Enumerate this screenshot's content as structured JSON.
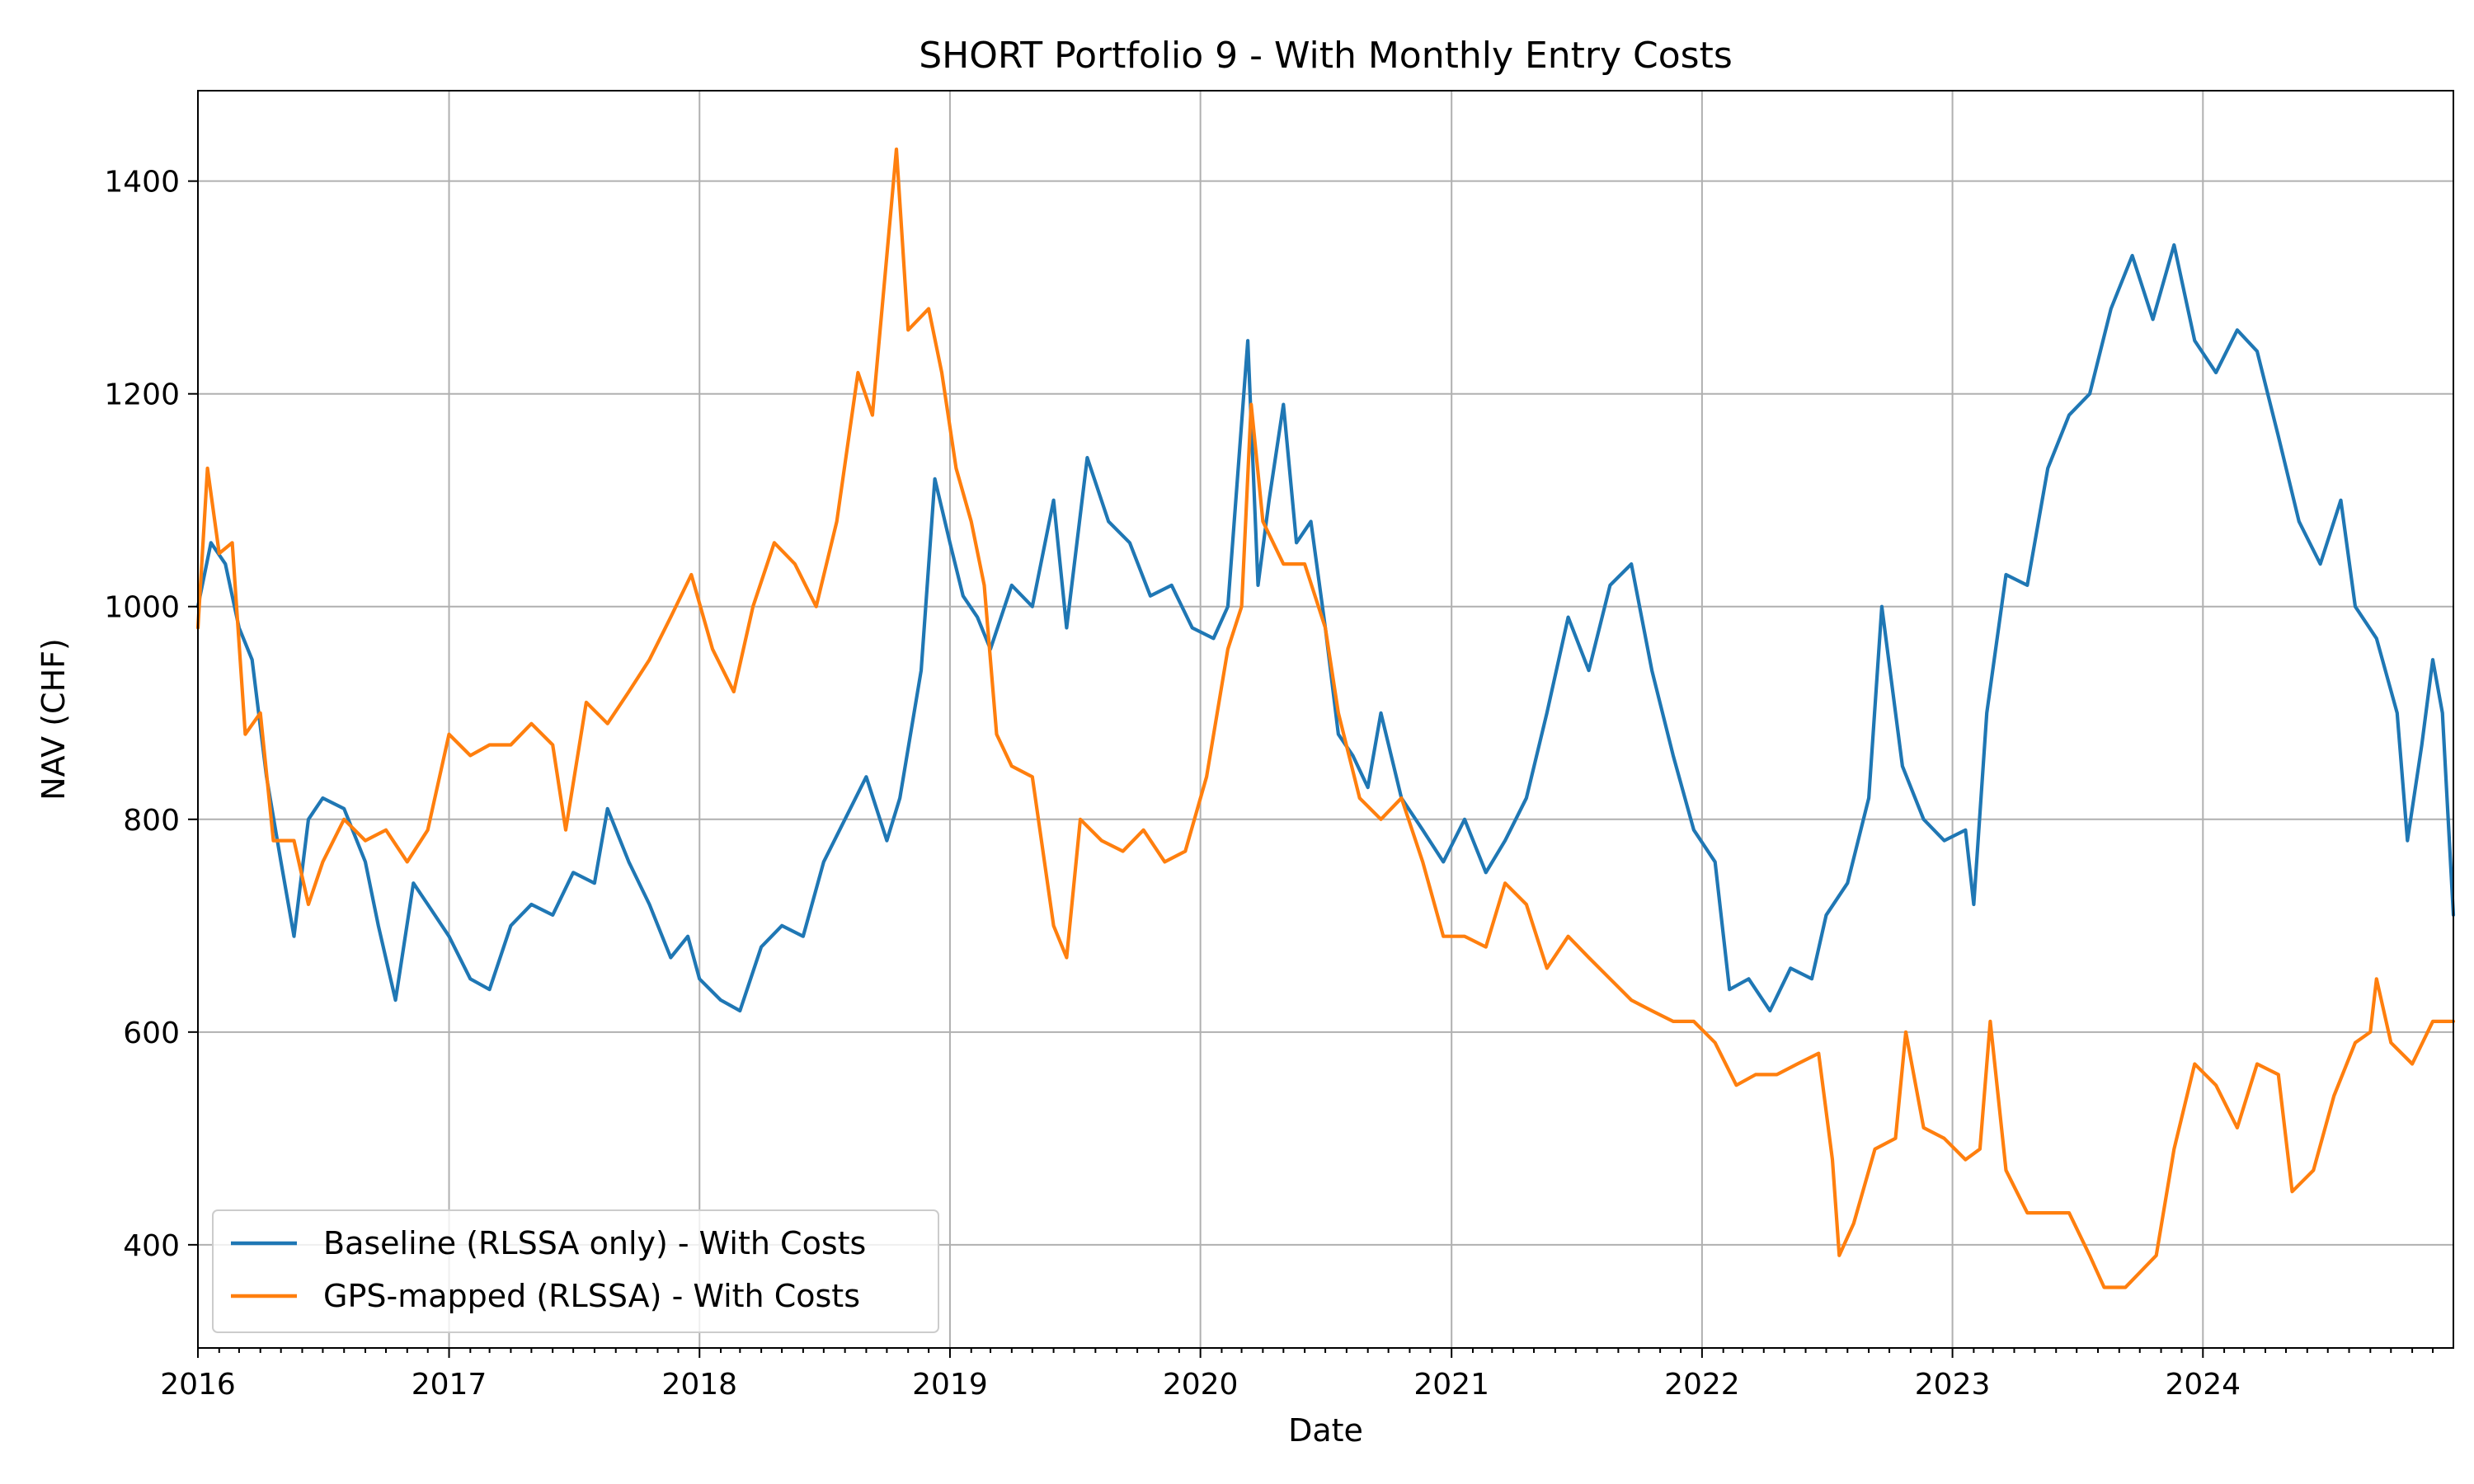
{
  "chart_data": {
    "type": "line",
    "title": "SHORT Portfolio 9 - With Monthly Entry Costs",
    "xlabel": "Date",
    "ylabel": "NAV (CHF)",
    "xlim": [
      "2016-01-01",
      "2024-12-31"
    ],
    "ylim": [
      303,
      1485
    ],
    "x_ticks": [
      "2016",
      "2017",
      "2018",
      "2019",
      "2020",
      "2021",
      "2022",
      "2023",
      "2024"
    ],
    "y_ticks": [
      400,
      600,
      800,
      1000,
      1200,
      1400
    ],
    "grid": true,
    "legend_position": "lower-left",
    "series": [
      {
        "name": "Baseline (RLSSA only) - With Costs",
        "color": "#1f77b4",
        "points": [
          [
            "2016-01-01",
            1000
          ],
          [
            "2016-01-20",
            1060
          ],
          [
            "2016-02-10",
            1040
          ],
          [
            "2016-03-01",
            980
          ],
          [
            "2016-03-20",
            950
          ],
          [
            "2016-04-10",
            840
          ],
          [
            "2016-05-01",
            760
          ],
          [
            "2016-05-20",
            690
          ],
          [
            "2016-06-10",
            800
          ],
          [
            "2016-07-01",
            820
          ],
          [
            "2016-08-01",
            810
          ],
          [
            "2016-09-01",
            760
          ],
          [
            "2016-09-20",
            700
          ],
          [
            "2016-10-15",
            630
          ],
          [
            "2016-11-10",
            740
          ],
          [
            "2016-12-01",
            720
          ],
          [
            "2017-01-01",
            690
          ],
          [
            "2017-02-01",
            650
          ],
          [
            "2017-03-01",
            640
          ],
          [
            "2017-04-01",
            700
          ],
          [
            "2017-05-01",
            720
          ],
          [
            "2017-06-01",
            710
          ],
          [
            "2017-07-01",
            750
          ],
          [
            "2017-08-01",
            740
          ],
          [
            "2017-08-20",
            810
          ],
          [
            "2017-09-20",
            760
          ],
          [
            "2017-10-20",
            720
          ],
          [
            "2017-11-20",
            670
          ],
          [
            "2017-12-15",
            690
          ],
          [
            "2018-01-01",
            650
          ],
          [
            "2018-02-01",
            630
          ],
          [
            "2018-03-01",
            620
          ],
          [
            "2018-04-01",
            680
          ],
          [
            "2018-05-01",
            700
          ],
          [
            "2018-06-01",
            690
          ],
          [
            "2018-07-01",
            760
          ],
          [
            "2018-08-01",
            800
          ],
          [
            "2018-09-01",
            840
          ],
          [
            "2018-10-01",
            780
          ],
          [
            "2018-10-20",
            820
          ],
          [
            "2018-11-20",
            940
          ],
          [
            "2018-12-10",
            1120
          ],
          [
            "2019-01-01",
            1060
          ],
          [
            "2019-01-20",
            1010
          ],
          [
            "2019-02-10",
            990
          ],
          [
            "2019-03-01",
            960
          ],
          [
            "2019-04-01",
            1020
          ],
          [
            "2019-05-01",
            1000
          ],
          [
            "2019-06-01",
            1100
          ],
          [
            "2019-06-20",
            980
          ],
          [
            "2019-07-20",
            1140
          ],
          [
            "2019-08-20",
            1080
          ],
          [
            "2019-09-20",
            1060
          ],
          [
            "2019-10-20",
            1010
          ],
          [
            "2019-11-20",
            1020
          ],
          [
            "2019-12-20",
            980
          ],
          [
            "2020-01-20",
            970
          ],
          [
            "2020-02-10",
            1000
          ],
          [
            "2020-03-10",
            1250
          ],
          [
            "2020-03-25",
            1020
          ],
          [
            "2020-04-10",
            1100
          ],
          [
            "2020-05-01",
            1190
          ],
          [
            "2020-05-20",
            1060
          ],
          [
            "2020-06-10",
            1080
          ],
          [
            "2020-07-01",
            980
          ],
          [
            "2020-07-20",
            880
          ],
          [
            "2020-08-10",
            860
          ],
          [
            "2020-09-01",
            830
          ],
          [
            "2020-09-20",
            900
          ],
          [
            "2020-10-20",
            820
          ],
          [
            "2020-11-20",
            790
          ],
          [
            "2020-12-20",
            760
          ],
          [
            "2021-01-20",
            800
          ],
          [
            "2021-02-20",
            750
          ],
          [
            "2021-03-20",
            780
          ],
          [
            "2021-04-20",
            820
          ],
          [
            "2021-05-20",
            900
          ],
          [
            "2021-06-20",
            990
          ],
          [
            "2021-07-20",
            940
          ],
          [
            "2021-08-20",
            1020
          ],
          [
            "2021-09-20",
            1040
          ],
          [
            "2021-10-20",
            940
          ],
          [
            "2021-11-20",
            860
          ],
          [
            "2021-12-20",
            790
          ],
          [
            "2022-01-20",
            760
          ],
          [
            "2022-02-10",
            640
          ],
          [
            "2022-03-10",
            650
          ],
          [
            "2022-04-10",
            620
          ],
          [
            "2022-05-10",
            660
          ],
          [
            "2022-06-10",
            650
          ],
          [
            "2022-07-01",
            710
          ],
          [
            "2022-08-01",
            740
          ],
          [
            "2022-09-01",
            820
          ],
          [
            "2022-09-20",
            1000
          ],
          [
            "2022-10-20",
            850
          ],
          [
            "2022-11-20",
            800
          ],
          [
            "2022-12-20",
            780
          ],
          [
            "2023-01-20",
            790
          ],
          [
            "2023-02-01",
            720
          ],
          [
            "2023-02-20",
            900
          ],
          [
            "2023-03-20",
            1030
          ],
          [
            "2023-04-20",
            1020
          ],
          [
            "2023-05-20",
            1130
          ],
          [
            "2023-06-20",
            1180
          ],
          [
            "2023-07-20",
            1200
          ],
          [
            "2023-08-20",
            1280
          ],
          [
            "2023-09-20",
            1330
          ],
          [
            "2023-10-20",
            1270
          ],
          [
            "2023-11-20",
            1340
          ],
          [
            "2023-12-20",
            1250
          ],
          [
            "2024-01-20",
            1220
          ],
          [
            "2024-02-20",
            1260
          ],
          [
            "2024-03-20",
            1240
          ],
          [
            "2024-04-20",
            1160
          ],
          [
            "2024-05-20",
            1080
          ],
          [
            "2024-06-20",
            1040
          ],
          [
            "2024-07-20",
            1100
          ],
          [
            "2024-08-10",
            1000
          ],
          [
            "2024-09-10",
            970
          ],
          [
            "2024-10-10",
            900
          ],
          [
            "2024-10-25",
            780
          ],
          [
            "2024-11-15",
            870
          ],
          [
            "2024-12-01",
            950
          ],
          [
            "2024-12-15",
            900
          ],
          [
            "2024-12-31",
            710
          ]
        ]
      },
      {
        "name": "GPS-mapped (RLSSA) - With Costs",
        "color": "#ff7f0e",
        "points": [
          [
            "2016-01-01",
            980
          ],
          [
            "2016-01-15",
            1130
          ],
          [
            "2016-02-01",
            1050
          ],
          [
            "2016-02-20",
            1060
          ],
          [
            "2016-03-10",
            880
          ],
          [
            "2016-04-01",
            900
          ],
          [
            "2016-04-20",
            780
          ],
          [
            "2016-05-20",
            780
          ],
          [
            "2016-06-10",
            720
          ],
          [
            "2016-07-01",
            760
          ],
          [
            "2016-08-01",
            800
          ],
          [
            "2016-09-01",
            780
          ],
          [
            "2016-10-01",
            790
          ],
          [
            "2016-11-01",
            760
          ],
          [
            "2016-12-01",
            790
          ],
          [
            "2017-01-01",
            880
          ],
          [
            "2017-02-01",
            860
          ],
          [
            "2017-03-01",
            870
          ],
          [
            "2017-04-01",
            870
          ],
          [
            "2017-05-01",
            890
          ],
          [
            "2017-06-01",
            870
          ],
          [
            "2017-06-20",
            790
          ],
          [
            "2017-07-20",
            910
          ],
          [
            "2017-08-20",
            890
          ],
          [
            "2017-09-20",
            920
          ],
          [
            "2017-10-20",
            950
          ],
          [
            "2017-11-20",
            990
          ],
          [
            "2017-12-20",
            1030
          ],
          [
            "2018-01-20",
            960
          ],
          [
            "2018-02-20",
            920
          ],
          [
            "2018-03-20",
            1000
          ],
          [
            "2018-04-20",
            1060
          ],
          [
            "2018-05-20",
            1040
          ],
          [
            "2018-06-20",
            1000
          ],
          [
            "2018-07-20",
            1080
          ],
          [
            "2018-08-20",
            1220
          ],
          [
            "2018-09-10",
            1180
          ],
          [
            "2018-10-01",
            1330
          ],
          [
            "2018-10-15",
            1430
          ],
          [
            "2018-11-01",
            1260
          ],
          [
            "2018-12-01",
            1280
          ],
          [
            "2018-12-20",
            1220
          ],
          [
            "2019-01-10",
            1130
          ],
          [
            "2019-02-01",
            1080
          ],
          [
            "2019-02-20",
            1020
          ],
          [
            "2019-03-10",
            880
          ],
          [
            "2019-04-01",
            850
          ],
          [
            "2019-05-01",
            840
          ],
          [
            "2019-06-01",
            700
          ],
          [
            "2019-06-20",
            670
          ],
          [
            "2019-07-10",
            800
          ],
          [
            "2019-08-10",
            780
          ],
          [
            "2019-09-10",
            770
          ],
          [
            "2019-10-10",
            790
          ],
          [
            "2019-11-10",
            760
          ],
          [
            "2019-12-10",
            770
          ],
          [
            "2020-01-10",
            840
          ],
          [
            "2020-02-10",
            960
          ],
          [
            "2020-03-01",
            1000
          ],
          [
            "2020-03-15",
            1190
          ],
          [
            "2020-04-01",
            1080
          ],
          [
            "2020-05-01",
            1040
          ],
          [
            "2020-06-01",
            1040
          ],
          [
            "2020-07-01",
            980
          ],
          [
            "2020-07-20",
            900
          ],
          [
            "2020-08-20",
            820
          ],
          [
            "2020-09-20",
            800
          ],
          [
            "2020-10-20",
            820
          ],
          [
            "2020-11-20",
            760
          ],
          [
            "2020-12-20",
            690
          ],
          [
            "2021-01-20",
            690
          ],
          [
            "2021-02-20",
            680
          ],
          [
            "2021-03-20",
            740
          ],
          [
            "2021-04-20",
            720
          ],
          [
            "2021-05-20",
            660
          ],
          [
            "2021-06-20",
            690
          ],
          [
            "2021-07-20",
            670
          ],
          [
            "2021-08-20",
            650
          ],
          [
            "2021-09-20",
            630
          ],
          [
            "2021-10-20",
            620
          ],
          [
            "2021-11-20",
            610
          ],
          [
            "2021-12-20",
            610
          ],
          [
            "2022-01-20",
            590
          ],
          [
            "2022-02-20",
            550
          ],
          [
            "2022-03-20",
            560
          ],
          [
            "2022-04-20",
            560
          ],
          [
            "2022-05-20",
            570
          ],
          [
            "2022-06-20",
            580
          ],
          [
            "2022-07-10",
            480
          ],
          [
            "2022-07-20",
            390
          ],
          [
            "2022-08-10",
            420
          ],
          [
            "2022-09-10",
            490
          ],
          [
            "2022-10-10",
            500
          ],
          [
            "2022-10-25",
            600
          ],
          [
            "2022-11-20",
            510
          ],
          [
            "2022-12-20",
            500
          ],
          [
            "2023-01-20",
            480
          ],
          [
            "2023-02-10",
            490
          ],
          [
            "2023-02-25",
            610
          ],
          [
            "2023-03-20",
            470
          ],
          [
            "2023-04-20",
            430
          ],
          [
            "2023-05-20",
            430
          ],
          [
            "2023-06-20",
            430
          ],
          [
            "2023-07-20",
            390
          ],
          [
            "2023-08-10",
            360
          ],
          [
            "2023-09-10",
            360
          ],
          [
            "2023-10-10",
            380
          ],
          [
            "2023-10-25",
            390
          ],
          [
            "2023-11-20",
            490
          ],
          [
            "2023-12-20",
            570
          ],
          [
            "2024-01-20",
            550
          ],
          [
            "2024-02-20",
            510
          ],
          [
            "2024-03-20",
            570
          ],
          [
            "2024-04-20",
            560
          ],
          [
            "2024-05-10",
            450
          ],
          [
            "2024-06-10",
            470
          ],
          [
            "2024-07-10",
            540
          ],
          [
            "2024-08-10",
            590
          ],
          [
            "2024-09-01",
            600
          ],
          [
            "2024-09-10",
            650
          ],
          [
            "2024-10-01",
            590
          ],
          [
            "2024-11-01",
            570
          ],
          [
            "2024-12-01",
            610
          ],
          [
            "2024-12-31",
            610
          ]
        ]
      }
    ]
  }
}
